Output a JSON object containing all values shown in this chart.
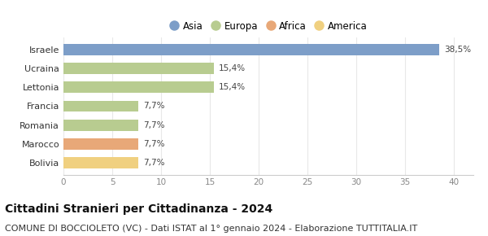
{
  "categories": [
    "Bolivia",
    "Marocco",
    "Romania",
    "Francia",
    "Lettonia",
    "Ucraina",
    "Israele"
  ],
  "values": [
    7.7,
    7.7,
    7.7,
    7.7,
    15.4,
    15.4,
    38.5
  ],
  "labels": [
    "7,7%",
    "7,7%",
    "7,7%",
    "7,7%",
    "15,4%",
    "15,4%",
    "38,5%"
  ],
  "colors": [
    "#f0d080",
    "#e8a878",
    "#b8cc90",
    "#b8cc90",
    "#b8cc90",
    "#b8cc90",
    "#7d9ec8"
  ],
  "legend": [
    {
      "label": "Asia",
      "color": "#7d9ec8"
    },
    {
      "label": "Europa",
      "color": "#b8cc90"
    },
    {
      "label": "Africa",
      "color": "#e8a878"
    },
    {
      "label": "America",
      "color": "#f0d080"
    }
  ],
  "xlim": [
    0,
    42
  ],
  "xticks": [
    0,
    5,
    10,
    15,
    20,
    25,
    30,
    35,
    40
  ],
  "title": "Cittadini Stranieri per Cittadinanza - 2024",
  "subtitle": "COMUNE DI BOCCIOLETO (VC) - Dati ISTAT al 1° gennaio 2024 - Elaborazione TUTTITALIA.IT",
  "title_fontsize": 10,
  "subtitle_fontsize": 8,
  "label_fontsize": 7.5,
  "ytick_fontsize": 8,
  "xtick_fontsize": 7.5,
  "legend_fontsize": 8.5,
  "bar_height": 0.6,
  "background_color": "#ffffff",
  "grid_color": "#e8e8e8"
}
